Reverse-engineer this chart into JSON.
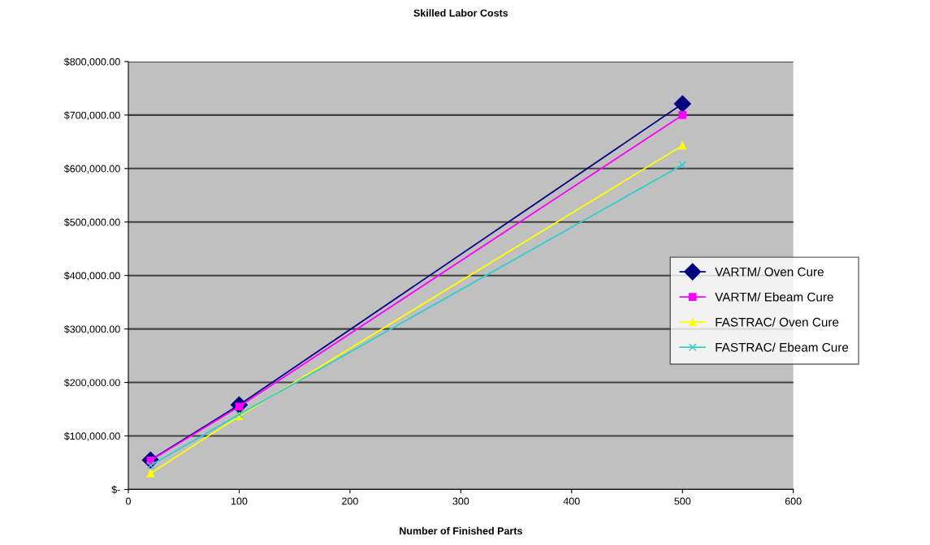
{
  "chart_data": {
    "type": "line",
    "title": "Skilled Labor Costs",
    "xlabel": "Number of Finished Parts",
    "series": [
      {
        "name": "VARTM/ Oven Cure",
        "color": "#000080",
        "marker": "diamond",
        "x": [
          20,
          100,
          500
        ],
        "values": [
          55000,
          158000,
          721000
        ]
      },
      {
        "name": "VARTM/ Ebeam Cure",
        "color": "#ff00ff",
        "marker": "square",
        "x": [
          20,
          100,
          500
        ],
        "values": [
          54000,
          155000,
          700000
        ]
      },
      {
        "name": "FASTRAC/ Oven Cure",
        "color": "#ffff00",
        "marker": "triangle",
        "x": [
          20,
          100,
          500
        ],
        "values": [
          30000,
          137000,
          643000
        ]
      },
      {
        "name": "FASTRAC/ Ebeam Cure",
        "color": "#33cccc",
        "marker": "cross",
        "x": [
          20,
          100,
          500
        ],
        "values": [
          45000,
          140000,
          607000
        ]
      }
    ],
    "xlim": [
      0,
      600
    ],
    "xticks": [
      0,
      100,
      200,
      300,
      400,
      500,
      600
    ],
    "ylim": [
      0,
      800000
    ],
    "yticks": [
      {
        "value": 0,
        "label": "$-"
      },
      {
        "value": 100000,
        "label": "$100,000.00"
      },
      {
        "value": 200000,
        "label": "$200,000.00"
      },
      {
        "value": 300000,
        "label": "$300,000.00"
      },
      {
        "value": 400000,
        "label": "$400,000.00"
      },
      {
        "value": 500000,
        "label": "$500,000.00"
      },
      {
        "value": 600000,
        "label": "$600,000.00"
      },
      {
        "value": 700000,
        "label": "$700,000.00"
      },
      {
        "value": 800000,
        "label": "$800,000.00"
      }
    ],
    "grid": "y",
    "legend": "right",
    "line_style": "solid"
  }
}
